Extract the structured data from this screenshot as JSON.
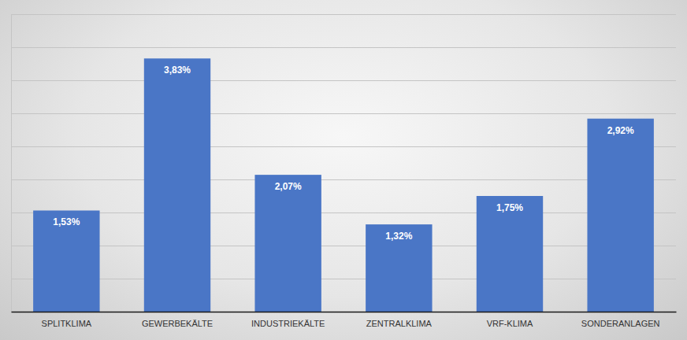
{
  "chart_data": {
    "type": "bar",
    "categories": [
      "SPLITKLIMA",
      "GEWERBEKÄLTE",
      "INDUSTRIEKÄLTE",
      "ZENTRALKLIMA",
      "VRF-KLIMA",
      "SONDERANLAGEN"
    ],
    "values": [
      1.53,
      3.83,
      2.07,
      1.32,
      1.75,
      2.92
    ],
    "value_labels": [
      "1,53%",
      "3,83%",
      "2,07%",
      "1,32%",
      "1,75%",
      "2,92%"
    ],
    "color": "#4a76c6",
    "ylim": [
      0,
      4.5
    ],
    "yticks": [
      0,
      0.5,
      1,
      1.5,
      2,
      2.5,
      3,
      3.5,
      4,
      4.5
    ],
    "grid": true,
    "data_labels": true,
    "tick_labels": "x"
  }
}
